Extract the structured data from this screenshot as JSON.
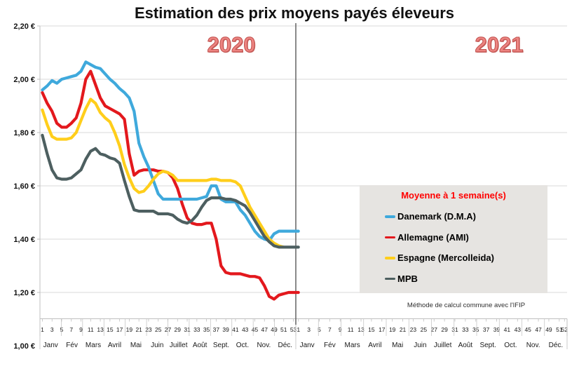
{
  "chart_data": {
    "type": "line",
    "title": "Estimation des prix moyens payés éleveurs",
    "note": "Méthode de calcul commune avec l'IFIP",
    "y_axis": {
      "min": 1.0,
      "max": 2.2,
      "tick_step": 0.2,
      "tick_labels": [
        "2,20 €",
        "2,00 €",
        "1,80 €",
        "1,60 €",
        "1,40 €",
        "1,20 €",
        "1,00 €"
      ],
      "tick_values": [
        2.2,
        2.0,
        1.8,
        1.6,
        1.4,
        1.2,
        1.0
      ]
    },
    "x_axis": {
      "years": [
        {
          "label": "2020",
          "weeks": 53,
          "week_tick_labels": [
            1,
            3,
            5,
            7,
            9,
            11,
            13,
            15,
            17,
            19,
            21,
            23,
            25,
            27,
            29,
            31,
            33,
            35,
            37,
            39,
            41,
            43,
            45,
            47,
            49,
            51,
            53
          ]
        },
        {
          "label": "2021",
          "weeks": 52,
          "week_tick_labels": [
            1,
            3,
            5,
            7,
            9,
            11,
            13,
            15,
            17,
            19,
            21,
            23,
            25,
            27,
            29,
            31,
            33,
            35,
            37,
            39,
            41,
            43,
            45,
            47,
            49,
            51,
            52
          ]
        }
      ],
      "month_labels": [
        "Janv",
        "Fév",
        "Mars",
        "Avril",
        "Mai",
        "Juin",
        "Juillet",
        "Août",
        "Sept.",
        "Oct.",
        "Nov.",
        "Déc."
      ]
    },
    "legend": {
      "title": "Moyenne à  1 semaine(s)",
      "title_color": "#FF0000",
      "items": [
        {
          "label": "Danemark (D.M.A)",
          "color": "#3FA9DC"
        },
        {
          "label": "Allemagne (AMI)",
          "color": "#E3181D"
        },
        {
          "label": "Espagne (Mercolleida)",
          "color": "#FFCE1B"
        },
        {
          "label": "MPB",
          "color": "#4D5F60"
        }
      ]
    },
    "series": [
      {
        "name": "Danemark (D.M.A)",
        "color": "#3FA9DC",
        "start_year": 2020,
        "start_week": 1,
        "values": [
          1.96,
          1.975,
          1.995,
          1.985,
          2.0,
          2.005,
          2.01,
          2.015,
          2.03,
          2.065,
          2.055,
          2.045,
          2.04,
          2.02,
          2.0,
          1.985,
          1.965,
          1.95,
          1.93,
          1.88,
          1.76,
          1.71,
          1.67,
          1.62,
          1.57,
          1.55,
          1.55,
          1.55,
          1.55,
          1.55,
          1.55,
          1.55,
          1.55,
          1.555,
          1.56,
          1.6,
          1.6,
          1.55,
          1.54,
          1.54,
          1.54,
          1.51,
          1.49,
          1.46,
          1.43,
          1.41,
          1.4,
          1.395,
          1.42,
          1.43,
          1.43,
          1.43,
          1.43,
          1.43
        ]
      },
      {
        "name": "Allemagne (AMI)",
        "color": "#E3181D",
        "start_year": 2020,
        "start_week": 1,
        "values": [
          1.95,
          1.91,
          1.88,
          1.835,
          1.82,
          1.82,
          1.835,
          1.855,
          1.91,
          2.0,
          2.03,
          1.98,
          1.93,
          1.9,
          1.89,
          1.88,
          1.87,
          1.85,
          1.72,
          1.64,
          1.655,
          1.66,
          1.66,
          1.66,
          1.655,
          1.655,
          1.65,
          1.63,
          1.59,
          1.53,
          1.48,
          1.46,
          1.455,
          1.455,
          1.46,
          1.46,
          1.4,
          1.3,
          1.275,
          1.27,
          1.27,
          1.27,
          1.265,
          1.26,
          1.26,
          1.255,
          1.225,
          1.185,
          1.175,
          1.19,
          1.195,
          1.2,
          1.2,
          1.2
        ]
      },
      {
        "name": "Espagne (Mercolleida)",
        "color": "#FFCE1B",
        "start_year": 2020,
        "start_week": 1,
        "values": [
          1.885,
          1.83,
          1.785,
          1.775,
          1.775,
          1.775,
          1.78,
          1.8,
          1.845,
          1.89,
          1.925,
          1.91,
          1.875,
          1.855,
          1.84,
          1.8,
          1.75,
          1.68,
          1.63,
          1.59,
          1.575,
          1.58,
          1.6,
          1.625,
          1.645,
          1.655,
          1.65,
          1.64,
          1.62,
          1.62,
          1.62,
          1.62,
          1.62,
          1.62,
          1.62,
          1.625,
          1.625,
          1.62,
          1.62,
          1.62,
          1.615,
          1.6,
          1.56,
          1.52,
          1.49,
          1.46,
          1.43,
          1.4,
          1.385,
          1.375,
          1.37
        ]
      },
      {
        "name": "MPB",
        "color": "#4D5F60",
        "start_year": 2020,
        "start_week": 1,
        "values": [
          1.79,
          1.72,
          1.66,
          1.63,
          1.625,
          1.625,
          1.63,
          1.645,
          1.66,
          1.7,
          1.73,
          1.74,
          1.72,
          1.715,
          1.705,
          1.7,
          1.685,
          1.62,
          1.56,
          1.51,
          1.505,
          1.505,
          1.505,
          1.505,
          1.495,
          1.495,
          1.495,
          1.49,
          1.475,
          1.465,
          1.46,
          1.47,
          1.49,
          1.52,
          1.545,
          1.555,
          1.555,
          1.555,
          1.55,
          1.55,
          1.545,
          1.535,
          1.525,
          1.5,
          1.47,
          1.44,
          1.41,
          1.39,
          1.375,
          1.37,
          1.37,
          1.37,
          1.37,
          1.37
        ]
      }
    ],
    "colors": {
      "grid": "#D9D9D9",
      "axis": "#BFBFBF",
      "divider": "#595959",
      "year_label": "#EC8481",
      "year_label_edge": "#C0504D",
      "legend_bg": "#E6E4E1",
      "background": "#FFFFFF"
    }
  }
}
